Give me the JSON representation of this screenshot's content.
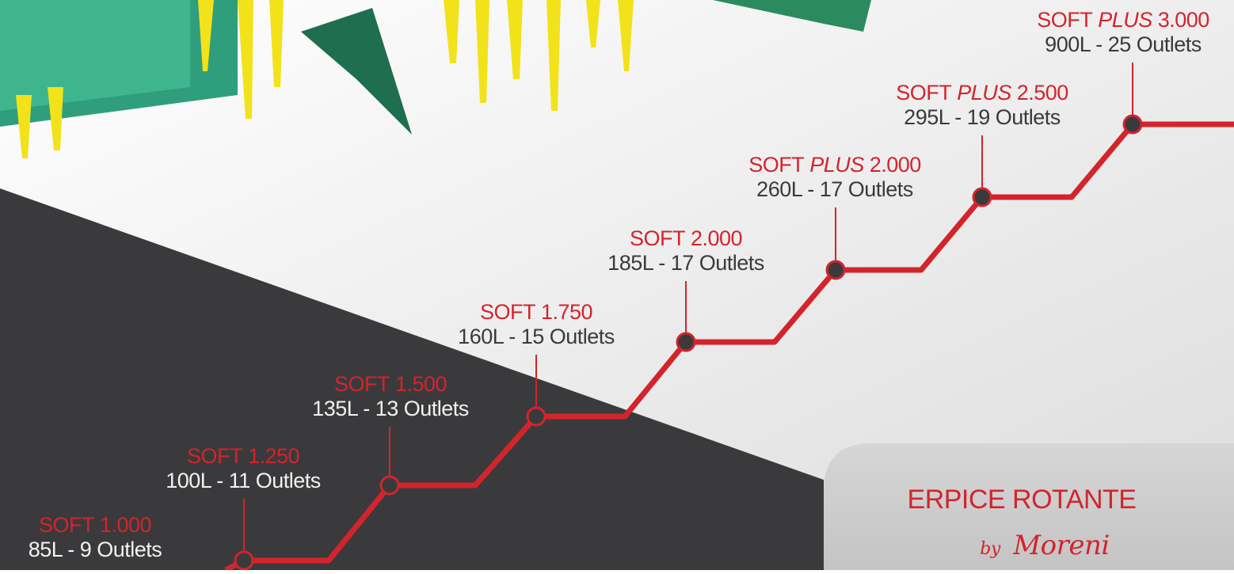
{
  "models": [
    {
      "line": "SOFT",
      "size": "1.000",
      "spec": "85L - 9 Outlets"
    },
    {
      "line": "SOFT",
      "size": "1.250",
      "spec": "100L - 11 Outlets"
    },
    {
      "line": "SOFT",
      "size": "1.500",
      "spec": "135L - 13 Outlets"
    },
    {
      "line": "SOFT",
      "size": "1.750",
      "spec": "160L - 15 Outlets"
    },
    {
      "line": "SOFT",
      "size": "2.000",
      "spec": "185L - 17 Outlets"
    },
    {
      "line": "SOFT",
      "variant": "PLUS",
      "size": "2.000",
      "spec": "260L - 17 Outlets"
    },
    {
      "line": "SOFT",
      "variant": "PLUS",
      "size": "2.500",
      "spec": "295L - 19 Outlets"
    },
    {
      "line": "SOFT",
      "variant": "PLUS",
      "size": "3.000",
      "spec": "900L - 25 Outlets"
    }
  ],
  "brand": {
    "title": "ERPICE ROTANTE",
    "by": "by",
    "maker": "Moreni"
  }
}
